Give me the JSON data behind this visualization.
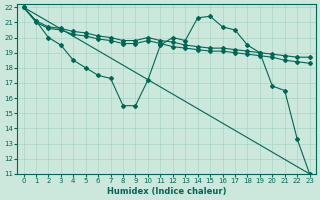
{
  "xlabel": "Humidex (Indice chaleur)",
  "bg_color": "#cce8dd",
  "grid_color": "#aad4c4",
  "line_color": "#006655",
  "xlim": [
    -0.5,
    23.5
  ],
  "ylim": [
    11,
    22.2
  ],
  "xticks": [
    0,
    1,
    2,
    3,
    4,
    5,
    6,
    7,
    8,
    9,
    10,
    11,
    12,
    13,
    14,
    15,
    16,
    17,
    18,
    19,
    20,
    21,
    22,
    23
  ],
  "yticks": [
    11,
    12,
    13,
    14,
    15,
    16,
    17,
    18,
    19,
    20,
    21,
    22
  ],
  "lines": [
    {
      "x": [
        0,
        1,
        2,
        3,
        4,
        5,
        6,
        7,
        8,
        9,
        10,
        11,
        12,
        13,
        14,
        15,
        16,
        17,
        18,
        19,
        20,
        21,
        22,
        23
      ],
      "y": [
        22,
        21.1,
        20.7,
        20.6,
        20.4,
        20.3,
        20.1,
        20.0,
        19.8,
        19.8,
        20.0,
        19.8,
        19.7,
        19.5,
        19.4,
        19.3,
        19.3,
        19.2,
        19.1,
        19.0,
        18.9,
        18.8,
        18.7,
        18.7
      ],
      "marker": "D",
      "markersize": 2.0
    },
    {
      "x": [
        0,
        1,
        2,
        3,
        4,
        5,
        6,
        7,
        8,
        9,
        10,
        11,
        12,
        13,
        14,
        15,
        16,
        17,
        18,
        19,
        20,
        21,
        22,
        23
      ],
      "y": [
        22,
        21.0,
        20.6,
        20.5,
        20.2,
        20.1,
        19.9,
        19.8,
        19.6,
        19.6,
        19.8,
        19.6,
        19.4,
        19.3,
        19.2,
        19.1,
        19.1,
        19.0,
        18.9,
        18.8,
        18.7,
        18.5,
        18.4,
        18.3
      ],
      "marker": "D",
      "markersize": 2.0
    },
    {
      "x": [
        0,
        1,
        2,
        3,
        4,
        5,
        6,
        7,
        8,
        9,
        10,
        11,
        12,
        13,
        14,
        15,
        16,
        17,
        18,
        19,
        20,
        21,
        22,
        23
      ],
      "y": [
        22,
        21.1,
        20.0,
        19.5,
        18.5,
        18.0,
        17.5,
        17.3,
        15.5,
        15.5,
        17.2,
        19.5,
        20.0,
        19.8,
        21.3,
        21.4,
        20.7,
        20.5,
        19.5,
        19.0,
        16.8,
        16.5,
        13.3,
        11.0
      ],
      "marker": "D",
      "markersize": 2.0
    },
    {
      "x": [
        0,
        23
      ],
      "y": [
        22,
        11
      ],
      "marker": null,
      "markersize": 0
    }
  ]
}
